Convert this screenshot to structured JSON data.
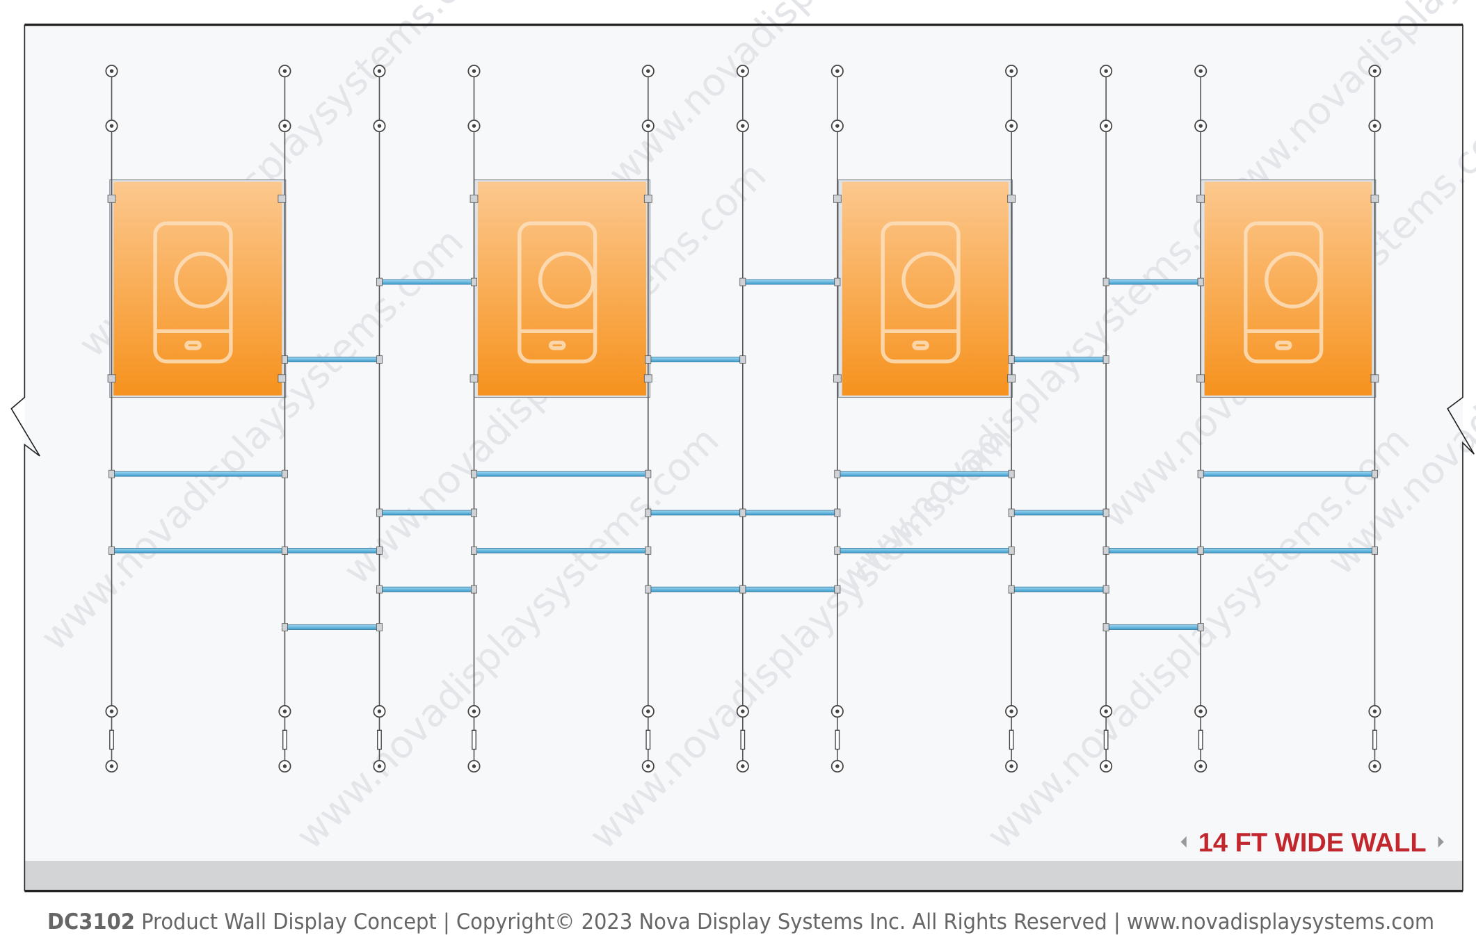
{
  "wall_label": "14 FT WIDE WALL",
  "footer": {
    "code": "DC3102",
    "text": "Product Wall Display Concept | Copyright© 2023 Nova Display Systems Inc. All Rights Reserved | www.novadisplaysystems.com"
  },
  "watermark": "www.novadisplaysystems.com"
}
